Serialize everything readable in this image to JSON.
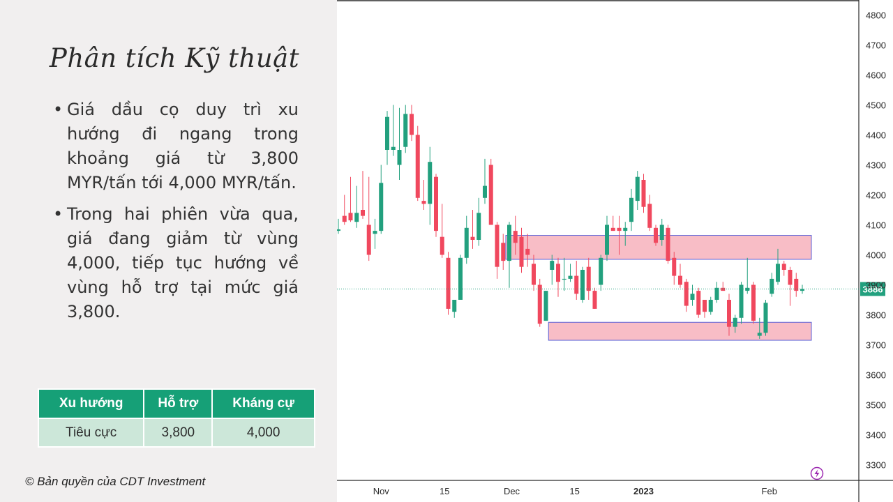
{
  "slide": {
    "title": "Phân tích Kỹ thuật",
    "bullets": [
      "Giá dầu cọ duy trì xu hướng đi ngang trong khoảng giá từ 3,800 MYR/tấn tới 4,000 MYR/tấn.",
      "Trong hai phiên vừa qua, giá đang giảm từ vùng 4,000, tiếp tục hướng về vùng hỗ trợ tại mức giá 3,800."
    ],
    "table": {
      "headers": [
        "Xu hướng",
        "Hỗ trợ",
        "Kháng cự"
      ],
      "row": [
        "Tiêu cực",
        "3,800",
        "4,000"
      ]
    },
    "copyright": "© Bản quyền của CDT Investment"
  },
  "chart_data": {
    "type": "candlestick",
    "title": "",
    "ylim": [
      3250,
      4850
    ],
    "y_ticks": [
      3300,
      3400,
      3500,
      3600,
      3700,
      3800,
      3900,
      4000,
      4100,
      4200,
      4300,
      4400,
      4500,
      4600,
      4700,
      4800
    ],
    "x_tick_labels": [
      "Nov",
      "15",
      "Dec",
      "15",
      "2023",
      "Feb"
    ],
    "last_price": "3886",
    "colors": {
      "up": "#22a07e",
      "down": "#f0485e",
      "zone": "#f7b6c0",
      "zone_border": "#5b63d9",
      "label_bg": "#22a07e"
    },
    "grid": false,
    "candles": [
      {
        "o": 4080,
        "h": 4120,
        "l": 4070,
        "c": 4085
      },
      {
        "o": 4130,
        "h": 4200,
        "l": 4100,
        "c": 4110
      },
      {
        "o": 4140,
        "h": 4260,
        "l": 4110,
        "c": 4115
      },
      {
        "o": 4110,
        "h": 4230,
        "l": 4090,
        "c": 4140
      },
      {
        "o": 4150,
        "h": 4280,
        "l": 4120,
        "c": 4130
      },
      {
        "o": 4100,
        "h": 4260,
        "l": 3980,
        "c": 4000
      },
      {
        "o": 4070,
        "h": 4120,
        "l": 4020,
        "c": 4080
      },
      {
        "o": 4080,
        "h": 4300,
        "l": 4070,
        "c": 4240
      },
      {
        "o": 4350,
        "h": 4480,
        "l": 4300,
        "c": 4460
      },
      {
        "o": 4350,
        "h": 4500,
        "l": 4330,
        "c": 4360
      },
      {
        "o": 4300,
        "h": 4490,
        "l": 4250,
        "c": 4350
      },
      {
        "o": 4360,
        "h": 4500,
        "l": 4340,
        "c": 4470
      },
      {
        "o": 4470,
        "h": 4500,
        "l": 4380,
        "c": 4400
      },
      {
        "o": 4400,
        "h": 4430,
        "l": 4180,
        "c": 4190
      },
      {
        "o": 4180,
        "h": 4250,
        "l": 4150,
        "c": 4170
      },
      {
        "o": 4170,
        "h": 4360,
        "l": 4100,
        "c": 4310
      },
      {
        "o": 4260,
        "h": 4270,
        "l": 4060,
        "c": 4080
      },
      {
        "o": 4060,
        "h": 4170,
        "l": 3990,
        "c": 4000
      },
      {
        "o": 3990,
        "h": 4010,
        "l": 3800,
        "c": 3820
      },
      {
        "o": 3810,
        "h": 3850,
        "l": 3790,
        "c": 3850
      },
      {
        "o": 3850,
        "h": 4000,
        "l": 3850,
        "c": 3990
      },
      {
        "o": 3990,
        "h": 4130,
        "l": 3970,
        "c": 4090
      },
      {
        "o": 4060,
        "h": 4150,
        "l": 4020,
        "c": 4050
      },
      {
        "o": 4050,
        "h": 4190,
        "l": 4030,
        "c": 4140
      },
      {
        "o": 4190,
        "h": 4320,
        "l": 4170,
        "c": 4230
      },
      {
        "o": 4300,
        "h": 4320,
        "l": 4100,
        "c": 4100
      },
      {
        "o": 4100,
        "h": 4110,
        "l": 3920,
        "c": 3960
      },
      {
        "o": 4040,
        "h": 4070,
        "l": 3950,
        "c": 3980
      },
      {
        "o": 3980,
        "h": 4110,
        "l": 3890,
        "c": 4100
      },
      {
        "o": 4080,
        "h": 4130,
        "l": 4000,
        "c": 4040
      },
      {
        "o": 4060,
        "h": 4090,
        "l": 3940,
        "c": 3960
      },
      {
        "o": 4020,
        "h": 4070,
        "l": 3960,
        "c": 4000
      },
      {
        "o": 3970,
        "h": 4000,
        "l": 3880,
        "c": 3900
      },
      {
        "o": 3900,
        "h": 3920,
        "l": 3760,
        "c": 3770
      },
      {
        "o": 3780,
        "h": 3880,
        "l": 3780,
        "c": 3880
      },
      {
        "o": 3950,
        "h": 4000,
        "l": 3900,
        "c": 3980
      },
      {
        "o": 3970,
        "h": 3990,
        "l": 3860,
        "c": 3910
      },
      {
        "o": 3920,
        "h": 3990,
        "l": 3880,
        "c": 3920
      },
      {
        "o": 3920,
        "h": 3970,
        "l": 3910,
        "c": 3930
      },
      {
        "o": 3930,
        "h": 3980,
        "l": 3850,
        "c": 3870
      },
      {
        "o": 3850,
        "h": 3960,
        "l": 3840,
        "c": 3950
      },
      {
        "o": 3960,
        "h": 3990,
        "l": 3850,
        "c": 3880
      },
      {
        "o": 3880,
        "h": 3890,
        "l": 3820,
        "c": 3820
      },
      {
        "o": 3900,
        "h": 4000,
        "l": 3880,
        "c": 3990
      },
      {
        "o": 4000,
        "h": 4130,
        "l": 3980,
        "c": 4100
      },
      {
        "o": 4090,
        "h": 4130,
        "l": 4080,
        "c": 4080
      },
      {
        "o": 4090,
        "h": 4130,
        "l": 4000,
        "c": 4080
      },
      {
        "o": 4080,
        "h": 4110,
        "l": 4030,
        "c": 4090
      },
      {
        "o": 4110,
        "h": 4220,
        "l": 4080,
        "c": 4190
      },
      {
        "o": 4180,
        "h": 4280,
        "l": 4150,
        "c": 4260
      },
      {
        "o": 4250,
        "h": 4270,
        "l": 4140,
        "c": 4160
      },
      {
        "o": 4170,
        "h": 4200,
        "l": 4080,
        "c": 4090
      },
      {
        "o": 4090,
        "h": 4100,
        "l": 4030,
        "c": 4040
      },
      {
        "o": 4050,
        "h": 4120,
        "l": 4030,
        "c": 4100
      },
      {
        "o": 4090,
        "h": 4100,
        "l": 3970,
        "c": 3980
      },
      {
        "o": 3990,
        "h": 4010,
        "l": 3900,
        "c": 3930
      },
      {
        "o": 3930,
        "h": 3970,
        "l": 3890,
        "c": 3900
      },
      {
        "o": 3910,
        "h": 3920,
        "l": 3810,
        "c": 3830
      },
      {
        "o": 3850,
        "h": 3900,
        "l": 3830,
        "c": 3870
      },
      {
        "o": 3880,
        "h": 3890,
        "l": 3790,
        "c": 3800
      },
      {
        "o": 3850,
        "h": 3850,
        "l": 3790,
        "c": 3810
      },
      {
        "o": 3810,
        "h": 3860,
        "l": 3800,
        "c": 3850
      },
      {
        "o": 3850,
        "h": 3910,
        "l": 3840,
        "c": 3890
      },
      {
        "o": 3890,
        "h": 3910,
        "l": 3880,
        "c": 3880
      },
      {
        "o": 3850,
        "h": 3870,
        "l": 3730,
        "c": 3760
      },
      {
        "o": 3760,
        "h": 3800,
        "l": 3740,
        "c": 3790
      },
      {
        "o": 3790,
        "h": 3910,
        "l": 3770,
        "c": 3900
      },
      {
        "o": 3880,
        "h": 3990,
        "l": 3870,
        "c": 3890
      },
      {
        "o": 3900,
        "h": 3910,
        "l": 3770,
        "c": 3780
      },
      {
        "o": 3730,
        "h": 3790,
        "l": 3720,
        "c": 3740
      },
      {
        "o": 3740,
        "h": 3850,
        "l": 3730,
        "c": 3840
      },
      {
        "o": 3870,
        "h": 3940,
        "l": 3860,
        "c": 3920
      },
      {
        "o": 3910,
        "h": 4020,
        "l": 3900,
        "c": 3970
      },
      {
        "o": 3970,
        "h": 3980,
        "l": 3930,
        "c": 3950
      },
      {
        "o": 3950,
        "h": 3960,
        "l": 3830,
        "c": 3900
      },
      {
        "o": 3920,
        "h": 3940,
        "l": 3860,
        "c": 3880
      },
      {
        "o": 3880,
        "h": 3900,
        "l": 3870,
        "c": 3886
      }
    ],
    "zones": [
      {
        "name": "resistance",
        "from_index": 28,
        "to_index": 76,
        "low": 3985,
        "high": 4065
      },
      {
        "name": "support",
        "from_index": 35,
        "to_index": 76,
        "low": 3715,
        "high": 3775
      }
    ]
  }
}
